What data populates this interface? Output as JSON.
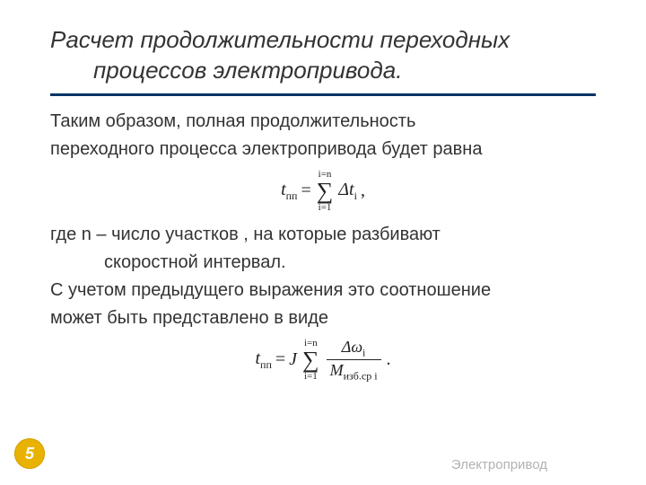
{
  "title": {
    "line1": "Расчет продолжительности переходных",
    "line2": "процессов электропривода."
  },
  "colors": {
    "rule": "#003366",
    "badge_bg": "#eab200",
    "badge_text": "#ffffff",
    "footer_text": "#b2b2b2",
    "body_text": "#333333"
  },
  "body": {
    "p1": "Таким образом, полная продолжительность",
    "p2": "переходного процесса электропривода будет равна",
    "p3": "где n – число участков , на которые разбивают",
    "p4": "скоростной интервал.",
    "p5": "С учетом предыдущего выражения это соотношение",
    "p6": "может быть представлено в виде"
  },
  "formula1": {
    "lhs_var": "t",
    "lhs_sub": "пп",
    "eq": "=",
    "sum_top": "i=n",
    "sum_bot": "i=1",
    "term": "Δt",
    "term_sub": "i",
    "tail": ","
  },
  "formula2": {
    "lhs_var": "t",
    "lhs_sub": "пп",
    "eq": "=",
    "J": "J",
    "sum_top": "i=n",
    "sum_bot": "i=1",
    "num": "Δω",
    "num_sub": "i",
    "den": "M",
    "den_sub": "изб.ср i",
    "tail": "."
  },
  "footer": {
    "label": "Электропривод",
    "page": "5"
  }
}
